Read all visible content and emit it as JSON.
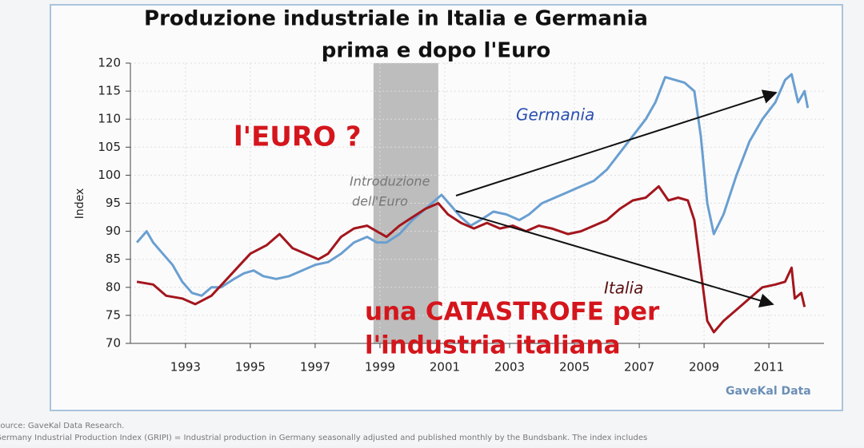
{
  "chart_data": {
    "type": "line",
    "title": "Produzione industriale in Italia e Germania",
    "subtitle": "prima e dopo l'Euro",
    "y_label": "Index",
    "xlim": [
      1991.3,
      2012.7
    ],
    "xticks": [
      1993,
      1995,
      1997,
      1999,
      2001,
      2003,
      2005,
      2007,
      2009,
      2011
    ],
    "ylim": [
      70,
      120
    ],
    "yticks": [
      70,
      75,
      80,
      85,
      90,
      95,
      100,
      105,
      110,
      115,
      120
    ],
    "grid": true,
    "shaded_span": [
      1998.8,
      2000.8
    ],
    "series": [
      {
        "name": "Germania",
        "color": "#6a9fd0",
        "x": [
          1991.5,
          1991.8,
          1992.0,
          1992.3,
          1992.6,
          1992.9,
          1993.2,
          1993.5,
          1993.8,
          1994.1,
          1994.5,
          1994.8,
          1995.1,
          1995.4,
          1995.8,
          1996.2,
          1996.6,
          1997.0,
          1997.4,
          1997.8,
          1998.2,
          1998.6,
          1998.9,
          1999.2,
          1999.6,
          2000.0,
          2000.4,
          2000.7,
          2000.9,
          2001.2,
          2001.5,
          2001.8,
          2002.1,
          2002.5,
          2002.9,
          2003.3,
          2003.6,
          2004.0,
          2004.4,
          2004.8,
          2005.2,
          2005.6,
          2006.0,
          2006.4,
          2006.8,
          2007.2,
          2007.5,
          2007.8,
          2008.1,
          2008.4,
          2008.7,
          2008.9,
          2009.1,
          2009.3,
          2009.6,
          2010.0,
          2010.4,
          2010.8,
          2011.2,
          2011.5,
          2011.7,
          2011.9,
          2012.1,
          2012.2
        ],
        "values": [
          88,
          90,
          88,
          86,
          84,
          81,
          79,
          78.5,
          80,
          80,
          81.5,
          82.5,
          83,
          82,
          81.5,
          82,
          83,
          84,
          84.5,
          86,
          88,
          89,
          88,
          88,
          89.5,
          92,
          94,
          95.5,
          96.5,
          94.5,
          92.5,
          91,
          92,
          93.5,
          93,
          92,
          93,
          95,
          96,
          97,
          98,
          99,
          101,
          104,
          107,
          110,
          113,
          117.5,
          117,
          116.5,
          115,
          107,
          95,
          89.5,
          93,
          100,
          106,
          110,
          113,
          117,
          118,
          113,
          115,
          112
        ]
      },
      {
        "name": "Italia",
        "color": "#a3161d",
        "x": [
          1991.5,
          1992.0,
          1992.4,
          1992.9,
          1993.3,
          1993.8,
          1994.2,
          1994.6,
          1995.0,
          1995.5,
          1995.9,
          1996.3,
          1996.7,
          1997.1,
          1997.4,
          1997.8,
          1998.2,
          1998.6,
          1998.9,
          1999.2,
          1999.6,
          2000.0,
          2000.4,
          2000.8,
          2001.1,
          2001.5,
          2001.9,
          2002.3,
          2002.7,
          2003.1,
          2003.5,
          2003.9,
          2004.3,
          2004.8,
          2005.2,
          2005.6,
          2006.0,
          2006.4,
          2006.8,
          2007.2,
          2007.6,
          2007.9,
          2008.2,
          2008.5,
          2008.7,
          2008.9,
          2009.1,
          2009.3,
          2009.6,
          2010.0,
          2010.4,
          2010.8,
          2011.2,
          2011.5,
          2011.7,
          2011.8,
          2012.0,
          2012.1
        ],
        "values": [
          81,
          80.5,
          78.5,
          78,
          77,
          78.5,
          81,
          83.5,
          86,
          87.5,
          89.5,
          87,
          86,
          85,
          86,
          89,
          90.5,
          91,
          90,
          89,
          91,
          92.5,
          94,
          95,
          93,
          91.5,
          90.5,
          91.5,
          90.5,
          91,
          90,
          91,
          90.5,
          89.5,
          90,
          91,
          92,
          94,
          95.5,
          96,
          98,
          95.5,
          96,
          95.5,
          92,
          83,
          74,
          72,
          74,
          76,
          78,
          80,
          80.5,
          81,
          83.5,
          78,
          79,
          76.5
        ]
      }
    ],
    "annotations": [
      "l'EURO ?",
      "Introduzione",
      "dell'Euro",
      "una CATASTROFE per",
      "l'industria italiana"
    ],
    "brand": "GaveKal Data",
    "source": [
      "Source: GaveKal Data Research.",
      "Germany Industrial Production Index (GRIPI) = Industrial production in Germany seasonally adjusted and published monthly by the Bundsbank. The index includes"
    ]
  }
}
